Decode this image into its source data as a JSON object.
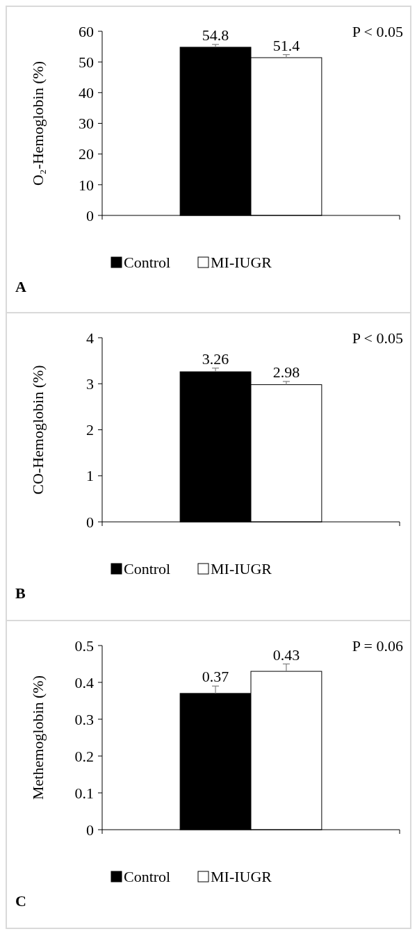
{
  "chart_data": [
    {
      "type": "bar",
      "ylabel": "O₂-Hemoglobin (%)",
      "categories": [
        null
      ],
      "ylim": [
        0,
        60
      ],
      "yticks": [
        0,
        10,
        20,
        30,
        40,
        50,
        60
      ],
      "data_labels": true,
      "legend": "bottom",
      "annotations": [
        "P < 0.05",
        "A"
      ],
      "series": [
        {
          "name": "Control",
          "color": "#000000",
          "values": [
            54.8
          ],
          "errors": [
            [
              54.8,
              55.7
            ]
          ]
        },
        {
          "name": "MI-IUGR",
          "color": "#ffffff",
          "values": [
            51.4
          ],
          "errors": [
            [
              51.4,
              52.4
            ]
          ]
        }
      ]
    },
    {
      "type": "bar",
      "ylabel": "CO-Hemoglobin (%)",
      "categories": [
        null
      ],
      "ylim": [
        0,
        4
      ],
      "yticks": [
        0,
        1,
        2,
        3,
        4
      ],
      "data_labels": true,
      "legend": "bottom",
      "annotations": [
        "P < 0.05",
        "B"
      ],
      "series": [
        {
          "name": "Control",
          "color": "#000000",
          "values": [
            3.26
          ],
          "errors": [
            [
              3.26,
              3.34
            ]
          ]
        },
        {
          "name": "MI-IUGR",
          "color": "#ffffff",
          "values": [
            2.98
          ],
          "errors": [
            [
              2.98,
              3.05
            ]
          ]
        }
      ]
    },
    {
      "type": "bar",
      "ylabel": "Methemoglobin (%)",
      "categories": [
        null
      ],
      "ylim": [
        0,
        0.5
      ],
      "yticks": [
        0,
        0.1,
        0.2,
        0.3,
        0.4,
        0.5
      ],
      "data_labels": true,
      "legend": "bottom",
      "annotations": [
        "P = 0.06",
        "C"
      ],
      "series": [
        {
          "name": "Control",
          "color": "#000000",
          "values": [
            0.37
          ],
          "errors": [
            [
              0.37,
              0.39
            ]
          ]
        },
        {
          "name": "MI-IUGR",
          "color": "#ffffff",
          "values": [
            0.43
          ],
          "errors": [
            [
              0.43,
              0.45
            ]
          ]
        }
      ]
    }
  ]
}
